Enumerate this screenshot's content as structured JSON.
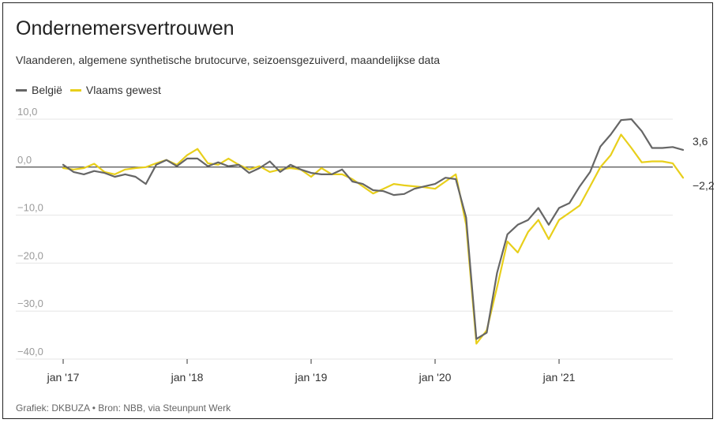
{
  "header": {
    "title": "Ondernemersvertrouwen",
    "subtitle": "Vlaanderen, algemene synthetische brutocurve, seizoensgezuiverd, maandelijkse data"
  },
  "footer": {
    "source": "Grafiek: DKBUZA • Bron: NBB, via Steunpunt Werk"
  },
  "chart_data": {
    "type": "line",
    "title": "Ondernemersvertrouwen",
    "subtitle": "Vlaanderen, algemene synthetische brutocurve, seizoensgezuiverd, maandelijkse data",
    "x_start": "2017-01",
    "x_end": "2021-12",
    "x_ticks": [
      "jan '17",
      "jan '18",
      "jan '19",
      "jan '20",
      "jan '21"
    ],
    "y_ticks": [
      "10,0",
      "0,0",
      "−10,0",
      "−20,0",
      "−30,0",
      "−40,0"
    ],
    "ylim": [
      -40,
      10
    ],
    "grid": true,
    "legend_position": "top-left",
    "series": [
      {
        "name": "België",
        "color": "#666666",
        "end_label": "3,6",
        "values": [
          0.5,
          -1.0,
          -1.5,
          -0.8,
          -1.2,
          -2.0,
          -1.5,
          -2.0,
          -3.5,
          0.5,
          1.5,
          0.2,
          1.8,
          1.8,
          0.2,
          1.0,
          0.2,
          0.5,
          -1.2,
          -0.2,
          1.2,
          -1.0,
          0.5,
          -0.5,
          -1.2,
          -1.5,
          -1.5,
          -0.5,
          -3.0,
          -3.5,
          -4.8,
          -5.0,
          -5.8,
          -5.6,
          -4.5,
          -4.0,
          -3.5,
          -2.2,
          -2.5,
          -10.5,
          -35.8,
          -34.5,
          -22.0,
          -14.0,
          -12.0,
          -11.0,
          -8.5,
          -12.0,
          -8.5,
          -7.5,
          -4.0,
          -1.0,
          4.3,
          6.8,
          9.8,
          10.0,
          7.5,
          4.0,
          4.0,
          4.2,
          3.6
        ]
      },
      {
        "name": "Vlaams gewest",
        "color": "#e8cf1b",
        "end_label": "−2,2",
        "values": [
          -0.2,
          -0.5,
          -0.2,
          0.7,
          -1.0,
          -1.5,
          -0.5,
          -0.2,
          0.0,
          0.8,
          1.5,
          0.5,
          2.5,
          3.8,
          0.8,
          0.5,
          1.8,
          0.5,
          -0.5,
          0.2,
          -1.0,
          -0.5,
          -0.2,
          -0.5,
          -2.0,
          -0.2,
          -1.5,
          -1.5,
          -2.5,
          -4.0,
          -5.5,
          -4.5,
          -3.5,
          -3.8,
          -4.0,
          -4.2,
          -4.5,
          -3.0,
          -1.5,
          -12.0,
          -36.8,
          -34.0,
          -25.0,
          -15.5,
          -17.8,
          -13.5,
          -11.0,
          -15.0,
          -11.0,
          -9.5,
          -8.0,
          -4.0,
          0.0,
          2.5,
          6.8,
          4.0,
          1.0,
          1.2,
          1.2,
          0.8,
          -2.2
        ]
      }
    ]
  }
}
